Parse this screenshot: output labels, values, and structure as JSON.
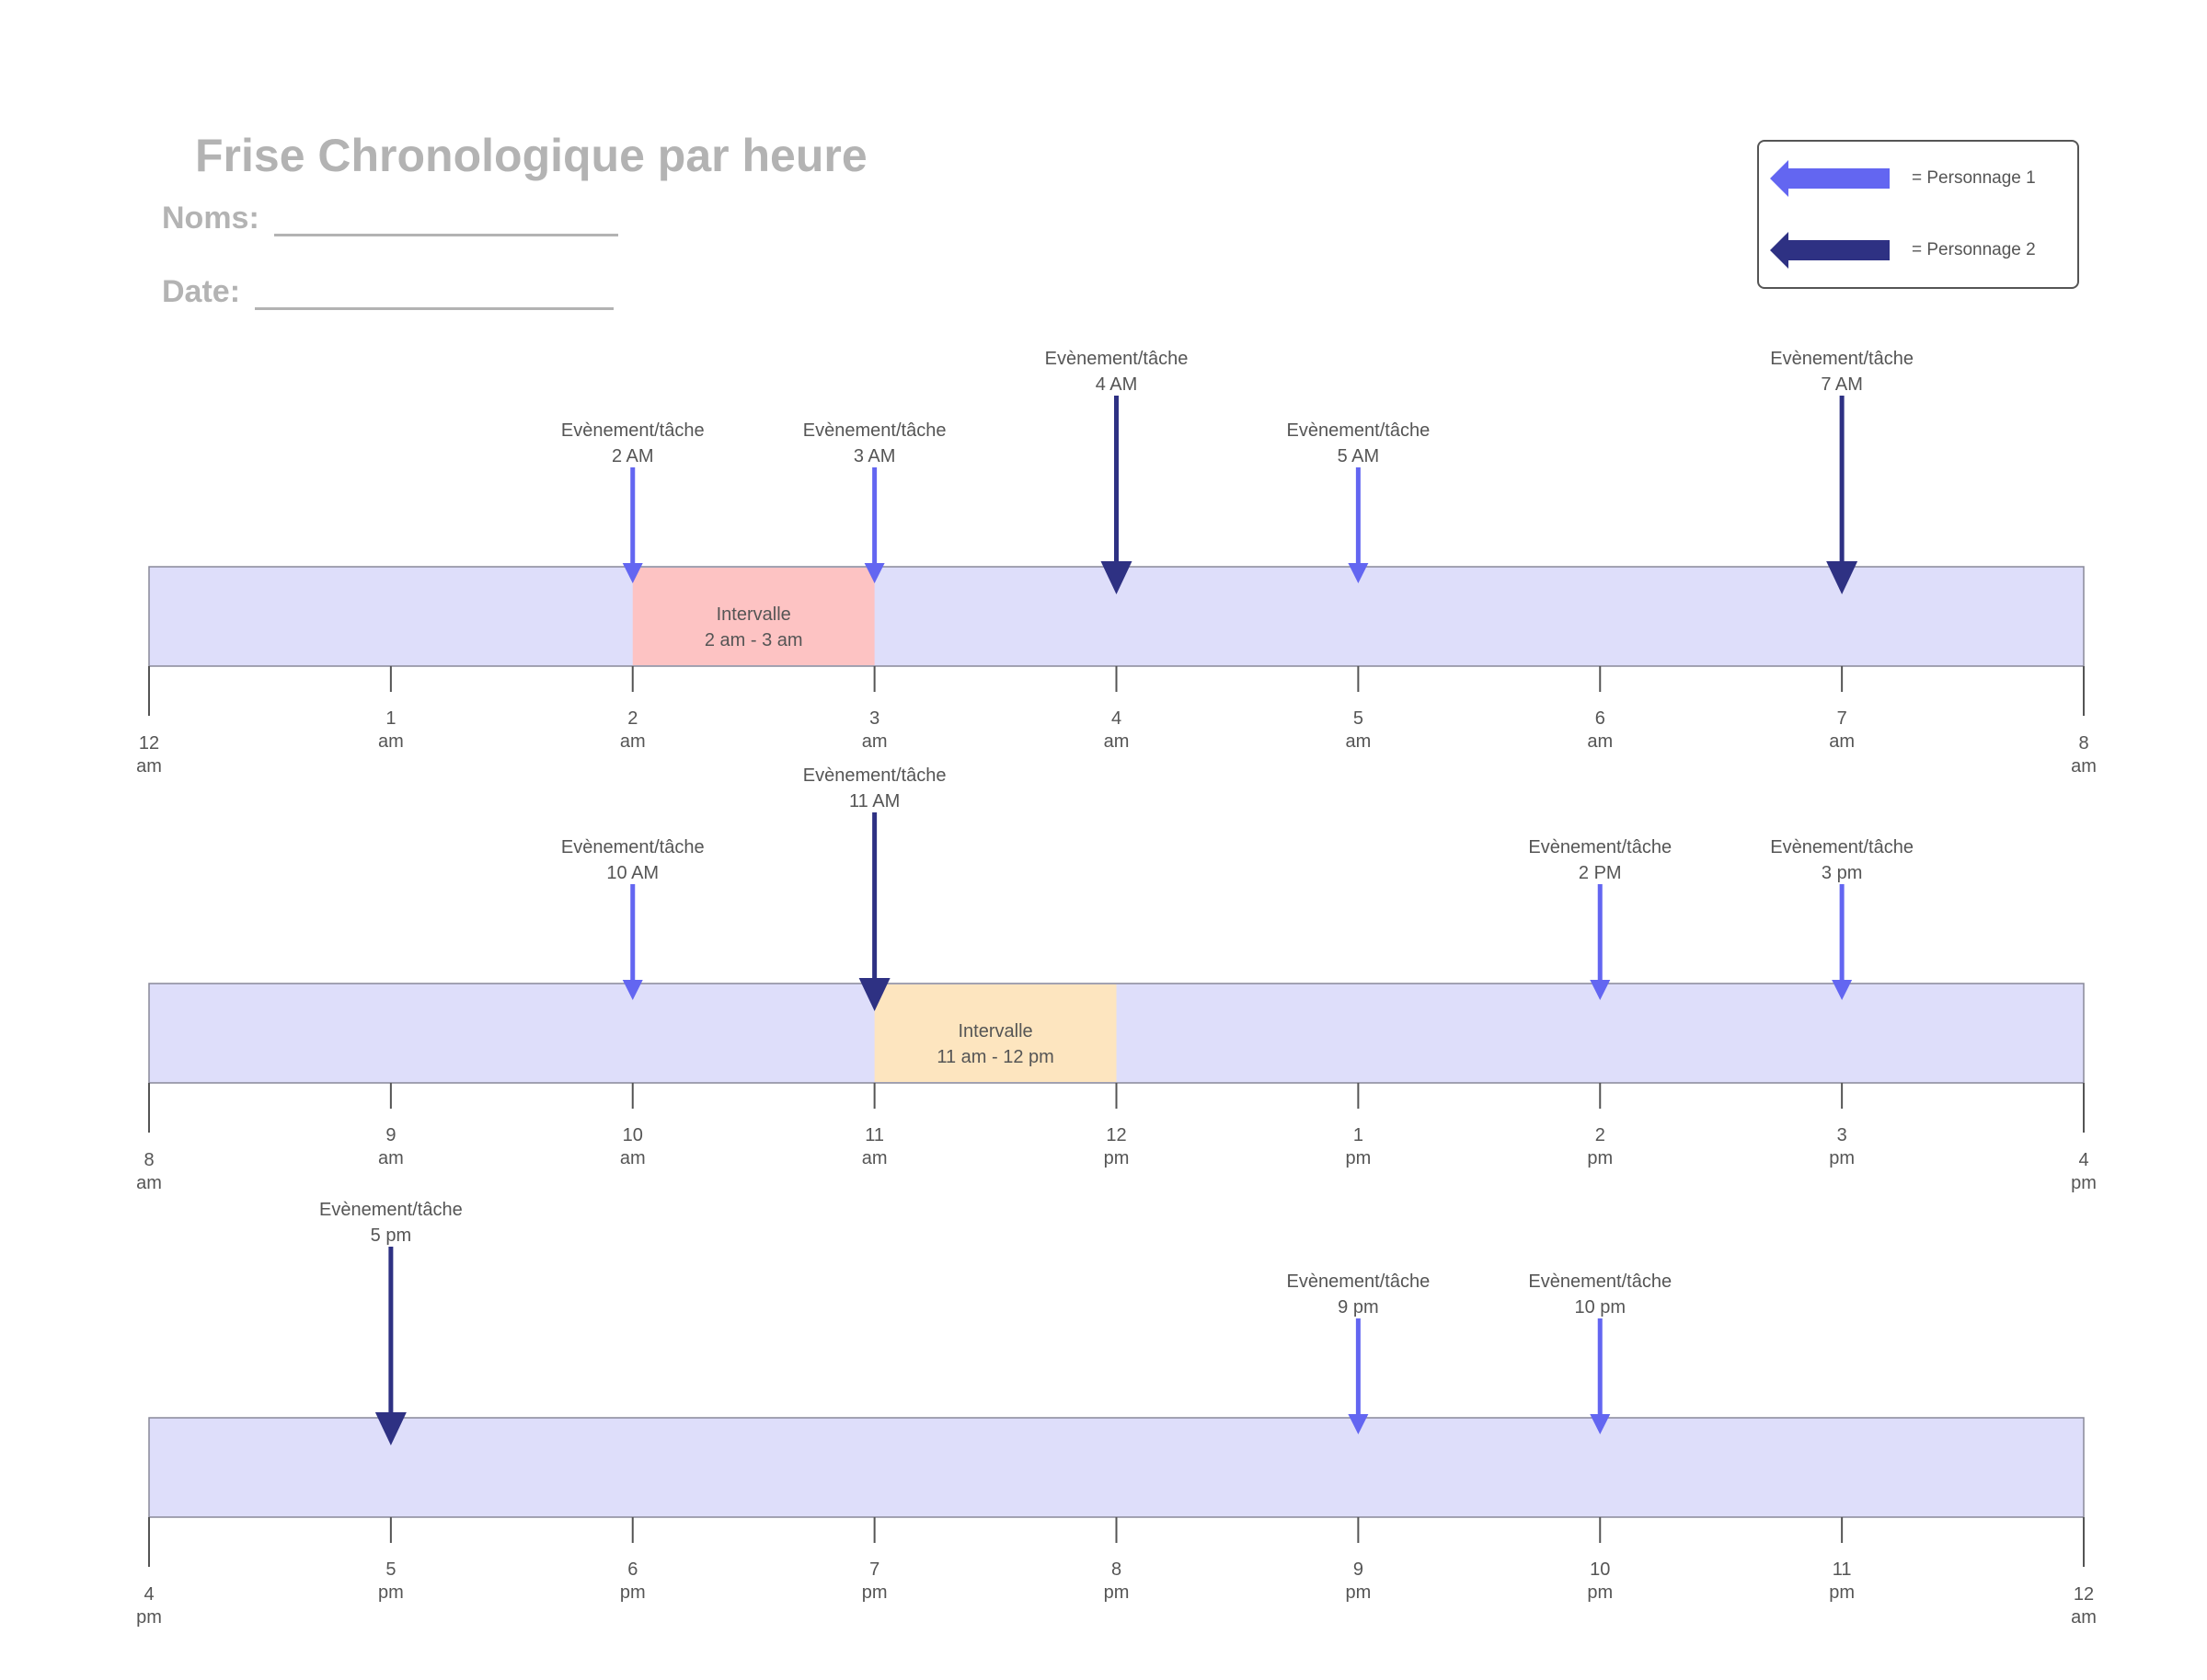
{
  "header": {
    "title": "Frise Chronologique par heure",
    "names_label": "Noms:",
    "date_label": "Date:"
  },
  "legend": {
    "items": [
      {
        "label": "= Personnage 1",
        "color": "#6366f1",
        "icon": "arrow-left-icon"
      },
      {
        "label": "= Personnage 2",
        "color": "#2e3183",
        "icon": "arrow-left-icon"
      }
    ]
  },
  "colors": {
    "band": "#dedefa",
    "band_border": "#888899",
    "personnage_1": "#6366f1",
    "personnage_2": "#2e3183",
    "interval_1": "#fdc3c3",
    "interval_2": "#fde5bf",
    "tick": "#555555"
  },
  "timelines": [
    {
      "ticks": [
        {
          "num": "12",
          "period": "am"
        },
        {
          "num": "1",
          "period": "am"
        },
        {
          "num": "2",
          "period": "am"
        },
        {
          "num": "3",
          "period": "am"
        },
        {
          "num": "4",
          "period": "am"
        },
        {
          "num": "5",
          "period": "am"
        },
        {
          "num": "6",
          "period": "am"
        },
        {
          "num": "7",
          "period": "am"
        },
        {
          "num": "8",
          "period": "am"
        }
      ],
      "events": [
        {
          "label": "Evènement/tâche",
          "time": "2 AM",
          "hour_index": 2,
          "personnage": 1
        },
        {
          "label": "Evènement/tâche",
          "time": "3 AM",
          "hour_index": 3,
          "personnage": 1
        },
        {
          "label": "Evènement/tâche",
          "time": "4 AM",
          "hour_index": 4,
          "personnage": 2
        },
        {
          "label": "Evènement/tâche",
          "time": "5 AM",
          "hour_index": 5,
          "personnage": 1
        },
        {
          "label": "Evènement/tâche",
          "time": "7 AM",
          "hour_index": 7,
          "personnage": 2
        }
      ],
      "intervals": [
        {
          "label": "Intervalle",
          "range": "2 am - 3 am",
          "start": 2,
          "end": 3,
          "color": "#fdc3c3"
        }
      ]
    },
    {
      "ticks": [
        {
          "num": "8",
          "period": "am"
        },
        {
          "num": "9",
          "period": "am"
        },
        {
          "num": "10",
          "period": "am"
        },
        {
          "num": "11",
          "period": "am"
        },
        {
          "num": "12",
          "period": "pm"
        },
        {
          "num": "1",
          "period": "pm"
        },
        {
          "num": "2",
          "period": "pm"
        },
        {
          "num": "3",
          "period": "pm"
        },
        {
          "num": "4",
          "period": "pm"
        }
      ],
      "events": [
        {
          "label": "Evènement/tâche",
          "time": "10 AM",
          "hour_index": 2,
          "personnage": 1
        },
        {
          "label": "Evènement/tâche",
          "time": "11 AM",
          "hour_index": 3,
          "personnage": 2
        },
        {
          "label": "Evènement/tâche",
          "time": "2 PM",
          "hour_index": 6,
          "personnage": 1
        },
        {
          "label": "Evènement/tâche",
          "time": "3 pm",
          "hour_index": 7,
          "personnage": 1
        }
      ],
      "intervals": [
        {
          "label": "Intervalle",
          "range": "11 am - 12 pm",
          "start": 3,
          "end": 4,
          "color": "#fde5bf"
        }
      ]
    },
    {
      "ticks": [
        {
          "num": "4",
          "period": "pm"
        },
        {
          "num": "5",
          "period": "pm"
        },
        {
          "num": "6",
          "period": "pm"
        },
        {
          "num": "7",
          "period": "pm"
        },
        {
          "num": "8",
          "period": "pm"
        },
        {
          "num": "9",
          "period": "pm"
        },
        {
          "num": "10",
          "period": "pm"
        },
        {
          "num": "11",
          "period": "pm"
        },
        {
          "num": "12",
          "period": "am"
        }
      ],
      "events": [
        {
          "label": "Evènement/tâche",
          "time": "5 pm",
          "hour_index": 1,
          "personnage": 2
        },
        {
          "label": "Evènement/tâche",
          "time": "9 pm",
          "hour_index": 5,
          "personnage": 1
        },
        {
          "label": "Evènement/tâche",
          "time": "10 pm",
          "hour_index": 6,
          "personnage": 1
        }
      ],
      "intervals": []
    }
  ]
}
